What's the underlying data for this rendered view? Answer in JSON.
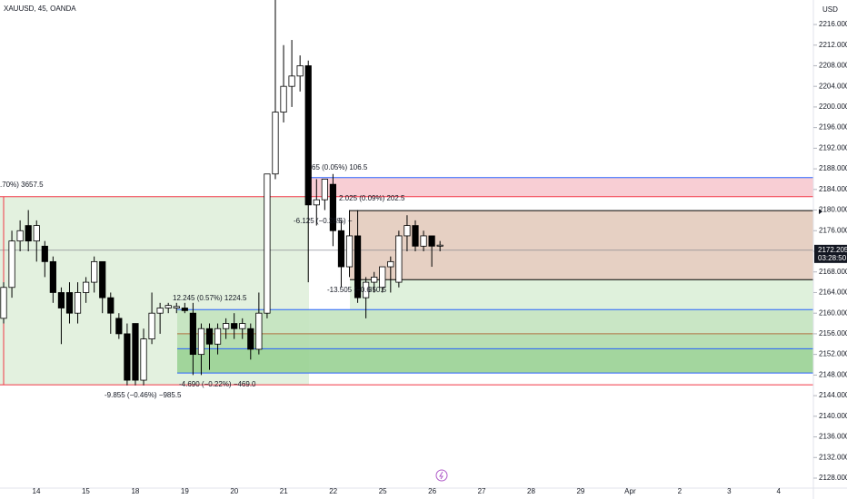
{
  "chart_data": {
    "type": "candlestick",
    "title": "XAUUSD, 45, OANDA",
    "currency": "USD",
    "current_price": 2172.205,
    "current_price_label": "2172.205",
    "countdown": "03:28:50",
    "up_color": "#ffffff",
    "down_color": "#000000",
    "ylim": [
      2128,
      2216
    ],
    "yticks": [
      {
        "value": 2128,
        "label": "2128.000"
      },
      {
        "value": 2132,
        "label": "2132.000"
      },
      {
        "value": 2136,
        "label": "2136.000"
      },
      {
        "value": 2140,
        "label": "2140.000"
      },
      {
        "value": 2144,
        "label": "2144.000"
      },
      {
        "value": 2148,
        "label": "2148.000"
      },
      {
        "value": 2152,
        "label": "2152.000"
      },
      {
        "value": 2156,
        "label": "2156.000"
      },
      {
        "value": 2160,
        "label": "2160.000"
      },
      {
        "value": 2164,
        "label": "2164.000"
      },
      {
        "value": 2168,
        "label": "2168.000"
      },
      {
        "value": 2172,
        "label": "2172.000"
      },
      {
        "value": 2176,
        "label": "2176.000"
      },
      {
        "value": 2180,
        "label": "2180.000"
      },
      {
        "value": 2184,
        "label": "2184.000"
      },
      {
        "value": 2188,
        "label": "2188.000"
      },
      {
        "value": 2192,
        "label": "2192.000"
      },
      {
        "value": 2196,
        "label": "2196.000"
      },
      {
        "value": 2200,
        "label": "2200.000"
      },
      {
        "value": 2204,
        "label": "2204.000"
      },
      {
        "value": 2208,
        "label": "2208.000"
      },
      {
        "value": 2212,
        "label": "2212.000"
      },
      {
        "value": 2216,
        "label": "2216.000"
      }
    ],
    "categories": [
      "14",
      "15",
      "18",
      "19",
      "20",
      "21",
      "22",
      "25",
      "26",
      "27",
      "28",
      "29",
      "Apr",
      "2",
      "3",
      "4"
    ],
    "candles": [
      {
        "open": 2159,
        "high": 2166,
        "low": 2158,
        "close": 2165
      },
      {
        "open": 2165,
        "high": 2176,
        "low": 2163,
        "close": 2174
      },
      {
        "open": 2174,
        "high": 2178,
        "low": 2172,
        "close": 2176
      },
      {
        "open": 2177,
        "high": 2180,
        "low": 2172,
        "close": 2174
      },
      {
        "open": 2174,
        "high": 2178,
        "low": 2170,
        "close": 2177
      },
      {
        "open": 2173,
        "high": 2174,
        "low": 2167,
        "close": 2170
      },
      {
        "open": 2170,
        "high": 2171,
        "low": 2162,
        "close": 2164
      },
      {
        "open": 2164,
        "high": 2165,
        "low": 2154,
        "close": 2161
      },
      {
        "open": 2164,
        "high": 2166,
        "low": 2158,
        "close": 2160
      },
      {
        "open": 2160,
        "high": 2166,
        "low": 2158,
        "close": 2164
      },
      {
        "open": 2164,
        "high": 2167,
        "low": 2162,
        "close": 2166
      },
      {
        "open": 2166,
        "high": 2171,
        "low": 2164,
        "close": 2170
      },
      {
        "open": 2170,
        "high": 2170,
        "low": 2160,
        "close": 2163
      },
      {
        "open": 2163,
        "high": 2164,
        "low": 2156,
        "close": 2160
      },
      {
        "open": 2159,
        "high": 2160,
        "low": 2155,
        "close": 2156
      },
      {
        "open": 2156,
        "high": 2158,
        "low": 2146,
        "close": 2147
      },
      {
        "open": 2158,
        "high": 2158,
        "low": 2146,
        "close": 2147
      },
      {
        "open": 2147,
        "high": 2157,
        "low": 2146,
        "close": 2155
      },
      {
        "open": 2155,
        "high": 2164,
        "low": 2154,
        "close": 2160
      },
      {
        "open": 2160,
        "high": 2162,
        "low": 2156,
        "close": 2161
      },
      {
        "open": 2161,
        "high": 2162,
        "low": 2160,
        "close": 2161.5
      },
      {
        "open": 2161,
        "high": 2162,
        "low": 2160,
        "close": 2161.3
      },
      {
        "open": 2161,
        "high": 2162,
        "low": 2160,
        "close": 2160.5
      },
      {
        "open": 2160,
        "high": 2162,
        "low": 2148,
        "close": 2152
      },
      {
        "open": 2152,
        "high": 2158,
        "low": 2148,
        "close": 2157
      },
      {
        "open": 2157,
        "high": 2158,
        "low": 2149,
        "close": 2154
      },
      {
        "open": 2154,
        "high": 2158,
        "low": 2152,
        "close": 2157
      },
      {
        "open": 2157,
        "high": 2159,
        "low": 2155,
        "close": 2158
      },
      {
        "open": 2158,
        "high": 2160,
        "low": 2155,
        "close": 2157
      },
      {
        "open": 2157,
        "high": 2159,
        "low": 2155,
        "close": 2158
      },
      {
        "open": 2157,
        "high": 2158,
        "low": 2151,
        "close": 2153
      },
      {
        "open": 2153,
        "high": 2164,
        "low": 2152,
        "close": 2160
      },
      {
        "open": 2160,
        "high": 2187,
        "low": 2159,
        "close": 2187
      },
      {
        "open": 2187,
        "high": 2225,
        "low": 2186,
        "close": 2199
      },
      {
        "open": 2199,
        "high": 2212,
        "low": 2197,
        "close": 2204
      },
      {
        "open": 2204,
        "high": 2213,
        "low": 2200,
        "close": 2206
      },
      {
        "open": 2206,
        "high": 2210,
        "low": 2203,
        "close": 2208
      },
      {
        "open": 2208,
        "high": 2209,
        "low": 2166,
        "close": 2181
      },
      {
        "open": 2181,
        "high": 2186,
        "low": 2177,
        "close": 2182
      },
      {
        "open": 2182,
        "high": 2186,
        "low": 2180,
        "close": 2186
      },
      {
        "open": 2185,
        "high": 2187,
        "low": 2173,
        "close": 2176
      },
      {
        "open": 2176,
        "high": 2178,
        "low": 2165,
        "close": 2169
      },
      {
        "open": 2169,
        "high": 2180,
        "low": 2167,
        "close": 2175
      },
      {
        "open": 2175,
        "high": 2180,
        "low": 2162,
        "close": 2163
      },
      {
        "open": 2163,
        "high": 2167,
        "low": 2159,
        "close": 2166
      },
      {
        "open": 2166,
        "high": 2168,
        "low": 2164,
        "close": 2167
      },
      {
        "open": 2165,
        "high": 2169,
        "low": 2164,
        "close": 2169
      },
      {
        "open": 2169,
        "high": 2171,
        "low": 2164,
        "close": 2170
      },
      {
        "open": 2166,
        "high": 2176,
        "low": 2165,
        "close": 2175
      },
      {
        "open": 2175,
        "high": 2179,
        "low": 2172,
        "close": 2177
      },
      {
        "open": 2177,
        "high": 2178,
        "low": 2172,
        "close": 2173
      },
      {
        "open": 2173,
        "high": 2176,
        "low": 2172,
        "close": 2175
      },
      {
        "open": 2175,
        "high": 2175,
        "low": 2169,
        "close": 2173
      },
      {
        "open": 2173,
        "high": 2174,
        "low": 2172,
        "close": 2173.2
      }
    ],
    "zones": [
      {
        "top": 2182.6,
        "bottom": 2146.1,
        "color": "#e0f0dc"
      },
      {
        "top": 2186.3,
        "bottom": 2182.6,
        "color": "#f7c9cf"
      },
      {
        "top": 2179.9,
        "bottom": 2166.5,
        "color": "#e3cbbd"
      },
      {
        "top": 2166.5,
        "bottom": 2160.7,
        "color": "#dcefd8"
      },
      {
        "top": 2160.7,
        "bottom": 2156.0,
        "color": "#c3e3bf"
      },
      {
        "top": 2156.0,
        "bottom": 2153.1,
        "color": "#b1dbab"
      },
      {
        "top": 2153.1,
        "bottom": 2148.4,
        "color": "#99d193"
      }
    ],
    "lines": [
      {
        "price": 2186.3,
        "color": "#2962ff"
      },
      {
        "price": 2182.6,
        "color": "#f23645"
      },
      {
        "price": 2179.9,
        "color": "#000000"
      },
      {
        "price": 2166.5,
        "color": "#000000"
      },
      {
        "price": 2160.7,
        "color": "#2962ff"
      },
      {
        "price": 2156.0,
        "color": "#b07040"
      },
      {
        "price": 2153.1,
        "color": "#2962ff"
      },
      {
        "price": 2148.4,
        "color": "#2962ff"
      },
      {
        "price": 2146.1,
        "color": "#f23645"
      }
    ],
    "annotations": [
      ".70%) 3657.5",
      "12.245 (0.57%) 1224.5",
      "-9.855 (−0.46%) −985.5",
      "-4.690 (−0.22%) −469.0",
      "65 (0.05%) 106.5",
      "2.025 (0.09%) 202.5",
      "-6.125 (−0.28%) −",
      ".5",
      "-13.505 (−0.6",
      "350.5"
    ]
  }
}
